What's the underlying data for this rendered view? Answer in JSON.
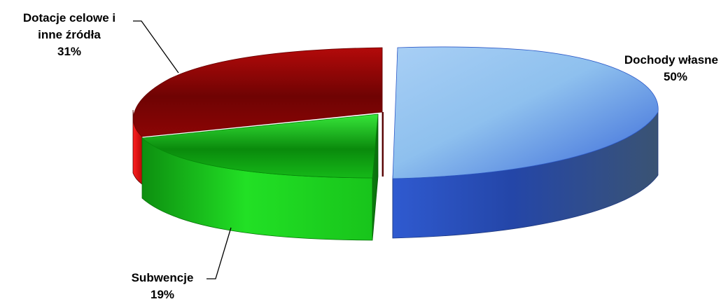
{
  "chart_data": {
    "type": "pie",
    "style": "3d-exploded",
    "title": "",
    "slices": [
      {
        "label": "Dochody własne",
        "value": 50,
        "display": "50%",
        "color": "#3d6fd6"
      },
      {
        "label": "Subwencje",
        "value": 19,
        "display": "19%",
        "color": "#17c41a"
      },
      {
        "label": "Dotacje celowe i inne źródła",
        "value": 31,
        "display": "31%",
        "color": "#c80d0d"
      }
    ],
    "labels": {
      "dochody": {
        "line1": "Dochody własne",
        "line2": "50%"
      },
      "subwencje": {
        "line1": "Subwencje",
        "line2": "19%"
      },
      "dotacje": {
        "line1": "Dotacje celowe i",
        "line2": "inne źródła",
        "line3": "31%"
      }
    }
  }
}
